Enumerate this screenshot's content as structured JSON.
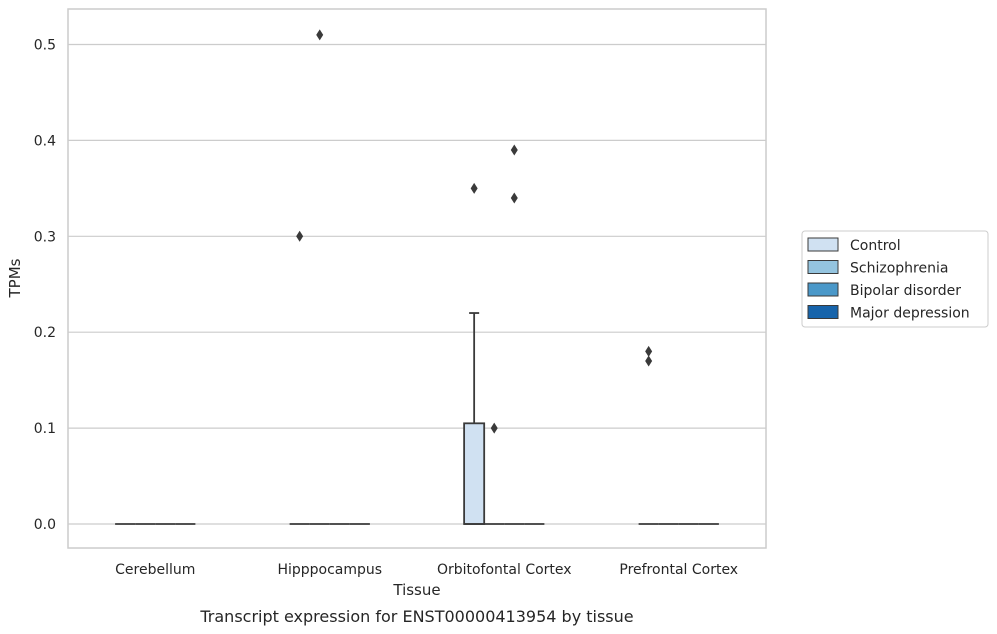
{
  "chart_data": {
    "type": "box",
    "xlabel": "Tissue",
    "ylabel": "TPMs",
    "caption": "Transcript expression for ENST00000413954 by tissue",
    "categories": [
      "Cerebellum",
      "Hipppocampus",
      "Orbitofontal Cortex",
      "Prefrontal Cortex"
    ],
    "ylim": [
      -0.025,
      0.537
    ],
    "yticks": [
      "0.0",
      "0.1",
      "0.2",
      "0.3",
      "0.4",
      "0.5"
    ],
    "ytick_values": [
      0.0,
      0.1,
      0.2,
      0.3,
      0.4,
      0.5
    ],
    "grid": "horizontal",
    "legend_position": "right",
    "series": [
      {
        "name": "Control",
        "color": "#d0e1f2",
        "boxes": [
          {
            "category": "Cerebellum",
            "q1": 0,
            "median": 0,
            "q3": 0,
            "whisker_low": 0,
            "whisker_high": 0,
            "outliers": []
          },
          {
            "category": "Hipppocampus",
            "q1": 0,
            "median": 0,
            "q3": 0,
            "whisker_low": 0,
            "whisker_high": 0,
            "outliers": [
              0.3
            ]
          },
          {
            "category": "Orbitofontal Cortex",
            "q1": 0,
            "median": 0,
            "q3": 0.105,
            "whisker_low": 0,
            "whisker_high": 0.22,
            "outliers": [
              0.35
            ]
          },
          {
            "category": "Prefrontal Cortex",
            "q1": 0,
            "median": 0,
            "q3": 0,
            "whisker_low": 0,
            "whisker_high": 0,
            "outliers": [
              0.17,
              0.18
            ]
          }
        ]
      },
      {
        "name": "Schizophrenia",
        "color": "#94c4df",
        "boxes": [
          {
            "category": "Cerebellum",
            "q1": 0,
            "median": 0,
            "q3": 0,
            "whisker_low": 0,
            "whisker_high": 0,
            "outliers": []
          },
          {
            "category": "Hipppocampus",
            "q1": 0,
            "median": 0,
            "q3": 0,
            "whisker_low": 0,
            "whisker_high": 0,
            "outliers": [
              0.51
            ]
          },
          {
            "category": "Orbitofontal Cortex",
            "q1": 0,
            "median": 0,
            "q3": 0,
            "whisker_low": 0,
            "whisker_high": 0,
            "outliers": [
              0.1
            ]
          },
          {
            "category": "Prefrontal Cortex",
            "q1": 0,
            "median": 0,
            "q3": 0,
            "whisker_low": 0,
            "whisker_high": 0,
            "outliers": []
          }
        ]
      },
      {
        "name": "Bipolar disorder",
        "color": "#4a98c9",
        "boxes": [
          {
            "category": "Cerebellum",
            "q1": 0,
            "median": 0,
            "q3": 0,
            "whisker_low": 0,
            "whisker_high": 0,
            "outliers": []
          },
          {
            "category": "Hipppocampus",
            "q1": 0,
            "median": 0,
            "q3": 0,
            "whisker_low": 0,
            "whisker_high": 0,
            "outliers": []
          },
          {
            "category": "Orbitofontal Cortex",
            "q1": 0,
            "median": 0,
            "q3": 0,
            "whisker_low": 0,
            "whisker_high": 0,
            "outliers": [
              0.34,
              0.39
            ]
          },
          {
            "category": "Prefrontal Cortex",
            "q1": 0,
            "median": 0,
            "q3": 0,
            "whisker_low": 0,
            "whisker_high": 0,
            "outliers": []
          }
        ]
      },
      {
        "name": "Major depression",
        "color": "#1764ab",
        "boxes": [
          {
            "category": "Cerebellum",
            "q1": 0,
            "median": 0,
            "q3": 0,
            "whisker_low": 0,
            "whisker_high": 0,
            "outliers": []
          },
          {
            "category": "Hipppocampus",
            "q1": 0,
            "median": 0,
            "q3": 0,
            "whisker_low": 0,
            "whisker_high": 0,
            "outliers": []
          },
          {
            "category": "Orbitofontal Cortex",
            "q1": 0,
            "median": 0,
            "q3": 0,
            "whisker_low": 0,
            "whisker_high": 0,
            "outliers": []
          },
          {
            "category": "Prefrontal Cortex",
            "q1": 0,
            "median": 0,
            "q3": 0,
            "whisker_low": 0,
            "whisker_high": 0,
            "outliers": []
          }
        ]
      }
    ]
  },
  "style": {
    "axis_color": "#cccccc",
    "grid_color": "#cccccc",
    "line_color": "#3a3a3a",
    "text_color": "#262626"
  }
}
